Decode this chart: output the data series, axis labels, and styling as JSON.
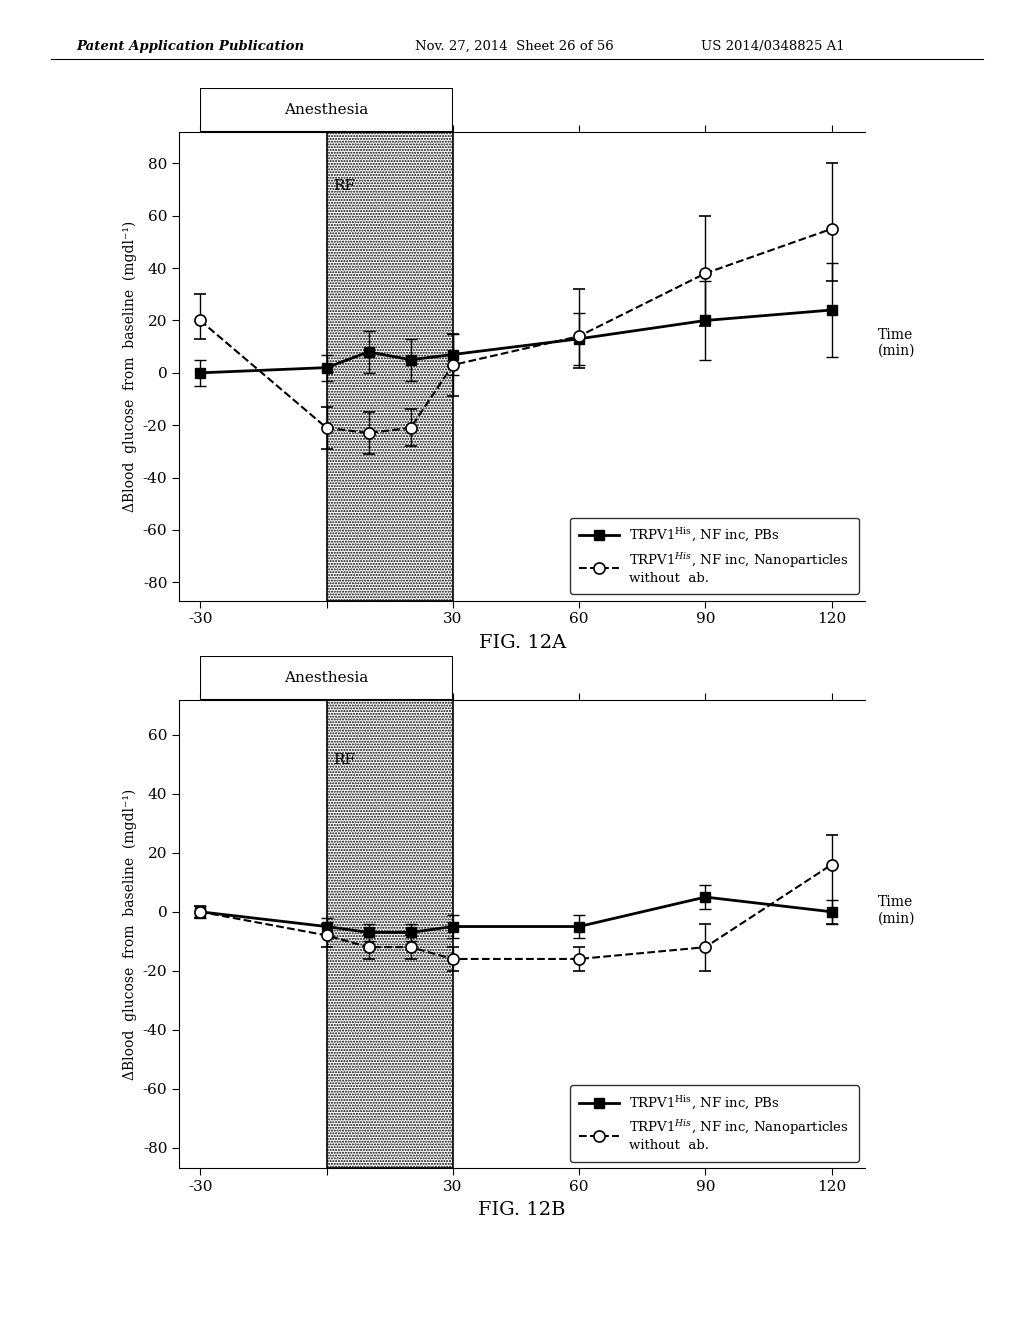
{
  "header_left": "Patent Application Publication",
  "header_mid": "Nov. 27, 2014  Sheet 26 of 56",
  "header_right": "US 2014/0348825 A1",
  "fig_label_A": "FIG. 12A",
  "fig_label_B": "FIG. 12B",
  "anesthesia_label": "Anesthesia",
  "RF_label": "RF",
  "time_label": "Time\n(min)",
  "ylabel": "ΔBlood  glucose  from  baseline  (mgdl⁻¹)",
  "xtick_labels": [
    "-30",
    "",
    "30",
    "60",
    "90",
    "120"
  ],
  "xtick_vals": [
    -30,
    0,
    30,
    60,
    90,
    120
  ],
  "yticks_A": [
    -80,
    -60,
    -40,
    -20,
    0,
    20,
    40,
    60,
    80
  ],
  "yticks_B": [
    -80,
    -60,
    -40,
    -20,
    0,
    20,
    40,
    60
  ],
  "ylim_A": [
    -87,
    92
  ],
  "ylim_B": [
    -87,
    72
  ],
  "xlim": [
    -35,
    128
  ],
  "rf_xstart": 0,
  "rf_xend": 30,
  "anesthesia_xstart": -30,
  "anesthesia_xend": 30,
  "series_A_solid_x": [
    -30,
    0,
    10,
    20,
    30,
    60,
    90,
    120
  ],
  "series_A_solid_y": [
    0,
    2,
    8,
    5,
    7,
    13,
    20,
    24
  ],
  "series_A_solid_yerr_lo": [
    5,
    5,
    8,
    8,
    8,
    10,
    15,
    18
  ],
  "series_A_solid_yerr_hi": [
    5,
    5,
    8,
    8,
    8,
    10,
    15,
    18
  ],
  "series_A_dashed_x": [
    -30,
    0,
    10,
    20,
    30,
    60,
    90,
    120
  ],
  "series_A_dashed_y": [
    20,
    -21,
    -23,
    -21,
    3,
    14,
    38,
    55
  ],
  "series_A_dashed_yerr_lo": [
    7,
    8,
    8,
    7,
    12,
    12,
    20,
    20
  ],
  "series_A_dashed_yerr_hi": [
    10,
    8,
    8,
    7,
    12,
    18,
    22,
    25
  ],
  "series_B_solid_x": [
    -30,
    0,
    10,
    20,
    30,
    60,
    90,
    120
  ],
  "series_B_solid_y": [
    0,
    -5,
    -7,
    -7,
    -5,
    -5,
    5,
    0
  ],
  "series_B_solid_yerr": [
    2,
    3,
    3,
    3,
    4,
    4,
    4,
    4
  ],
  "series_B_dashed_x": [
    -30,
    0,
    10,
    20,
    30,
    60,
    90,
    120
  ],
  "series_B_dashed_y": [
    0,
    -8,
    -12,
    -12,
    -16,
    -16,
    -12,
    16
  ],
  "series_B_dashed_yerr_lo": [
    2,
    4,
    4,
    4,
    4,
    4,
    8,
    20
  ],
  "series_B_dashed_yerr_hi": [
    2,
    4,
    4,
    4,
    4,
    4,
    8,
    10
  ],
  "background": "#ffffff"
}
